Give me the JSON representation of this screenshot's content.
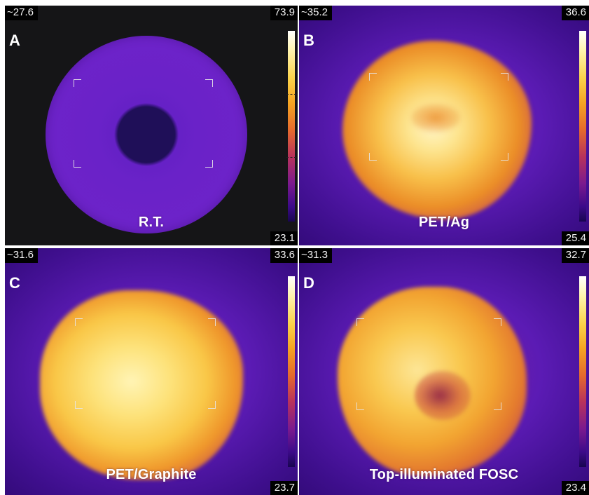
{
  "panels": {
    "a": {
      "letter": "A",
      "caption": "R.T.",
      "spot": "~27.6",
      "max": "73.9",
      "min": "23.1"
    },
    "b": {
      "letter": "B",
      "caption": "PET/Ag",
      "spot": "~35.2",
      "max": "36.6",
      "min": "25.4"
    },
    "c": {
      "letter": "C",
      "caption": "PET/Graphite",
      "spot": "~31.6",
      "max": "33.6",
      "min": "23.7"
    },
    "d": {
      "letter": "D",
      "caption": "Top-illuminated FOSC",
      "spot": "~31.3",
      "max": "32.7",
      "min": "23.4"
    }
  },
  "palette": {
    "hot": "#fff4b5",
    "warm": "#f5a422",
    "cool": "#5b1bb4",
    "cold": "#180650"
  }
}
